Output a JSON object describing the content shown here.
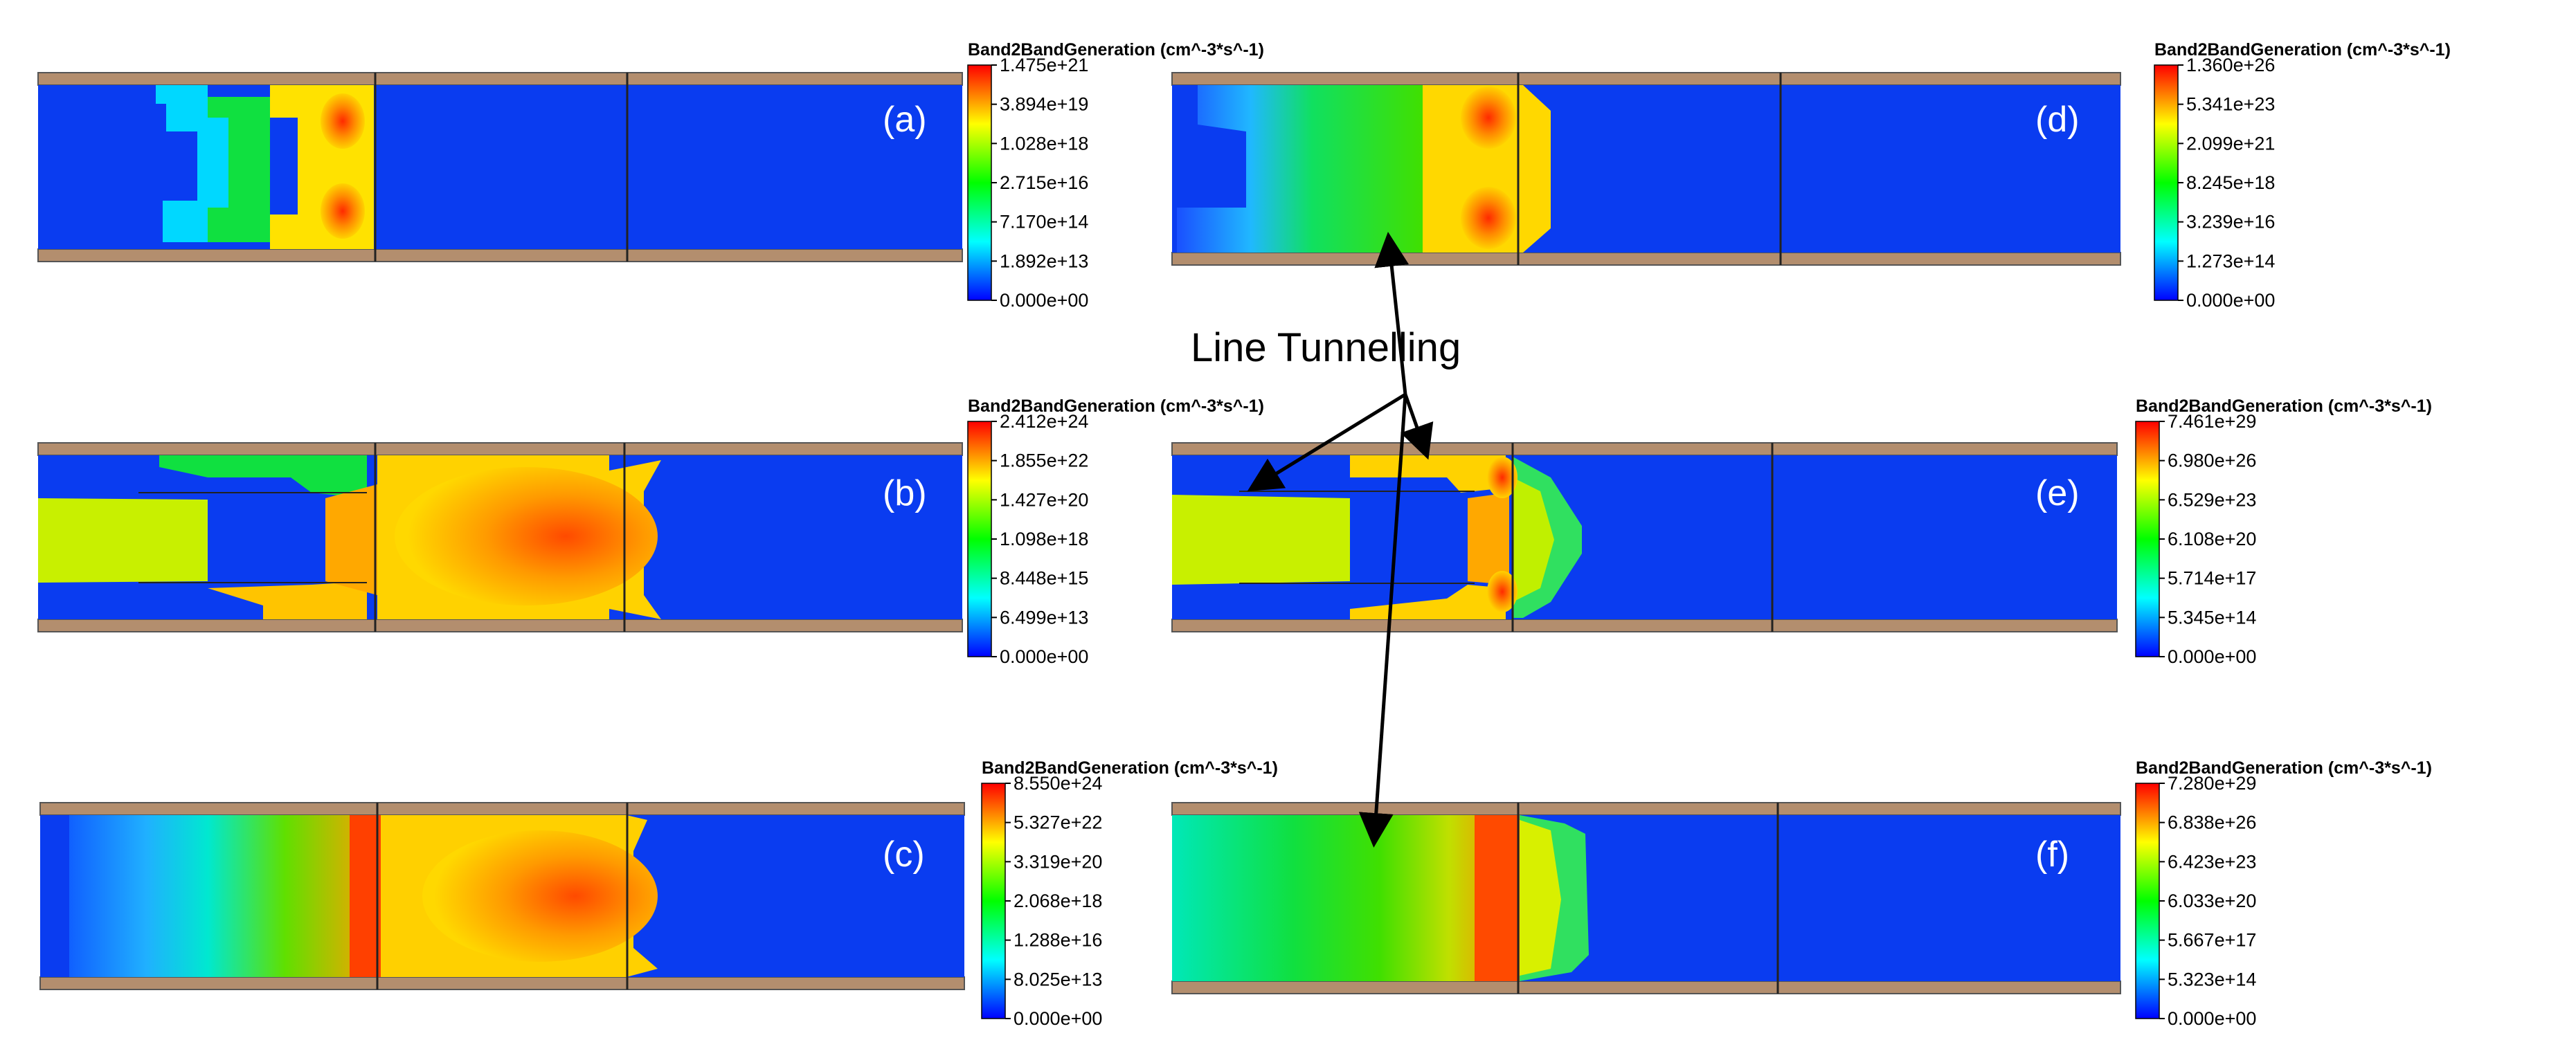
{
  "annotation": {
    "text": "Line Tunnelling"
  },
  "panels": [
    {
      "label": "(a)",
      "legend": {
        "title": "Band2BandGeneration (cm^-3*s^-1)",
        "ticks": [
          "1.475e+21",
          "3.894e+19",
          "1.028e+18",
          "2.715e+16",
          "7.170e+14",
          "1.892e+13",
          "0.000e+00"
        ]
      }
    },
    {
      "label": "(b)",
      "legend": {
        "title": "Band2BandGeneration (cm^-3*s^-1)",
        "ticks": [
          "2.412e+24",
          "1.855e+22",
          "1.427e+20",
          "1.098e+18",
          "8.448e+15",
          "6.499e+13",
          "0.000e+00"
        ]
      }
    },
    {
      "label": "(c)",
      "legend": {
        "title": "Band2BandGeneration (cm^-3*s^-1)",
        "ticks": [
          "8.550e+24",
          "5.327e+22",
          "3.319e+20",
          "2.068e+18",
          "1.288e+16",
          "8.025e+13",
          "0.000e+00"
        ]
      }
    },
    {
      "label": "(d)",
      "legend": {
        "title": "Band2BandGeneration (cm^-3*s^-1)",
        "ticks": [
          "1.360e+26",
          "5.341e+23",
          "2.099e+21",
          "8.245e+18",
          "3.239e+16",
          "1.273e+14",
          "0.000e+00"
        ]
      }
    },
    {
      "label": "(e)",
      "legend": {
        "title": "Band2BandGeneration (cm^-3*s^-1)",
        "ticks": [
          "7.461e+29",
          "6.980e+26",
          "6.529e+23",
          "6.108e+20",
          "5.714e+17",
          "5.345e+14",
          "0.000e+00"
        ]
      }
    },
    {
      "label": "(f)",
      "legend": {
        "title": "Band2BandGeneration (cm^-3*s^-1)",
        "ticks": [
          "7.280e+29",
          "6.838e+26",
          "6.423e+23",
          "6.033e+20",
          "5.667e+17",
          "5.323e+14",
          "0.000e+00"
        ]
      }
    }
  ],
  "colors": {
    "background_field": "#0a3cf0",
    "oxide": "#b38e6e",
    "separator": "#222222",
    "scale": [
      "#0000ff",
      "#00ffff",
      "#00ff00",
      "#ffff00",
      "#ff0000"
    ]
  }
}
